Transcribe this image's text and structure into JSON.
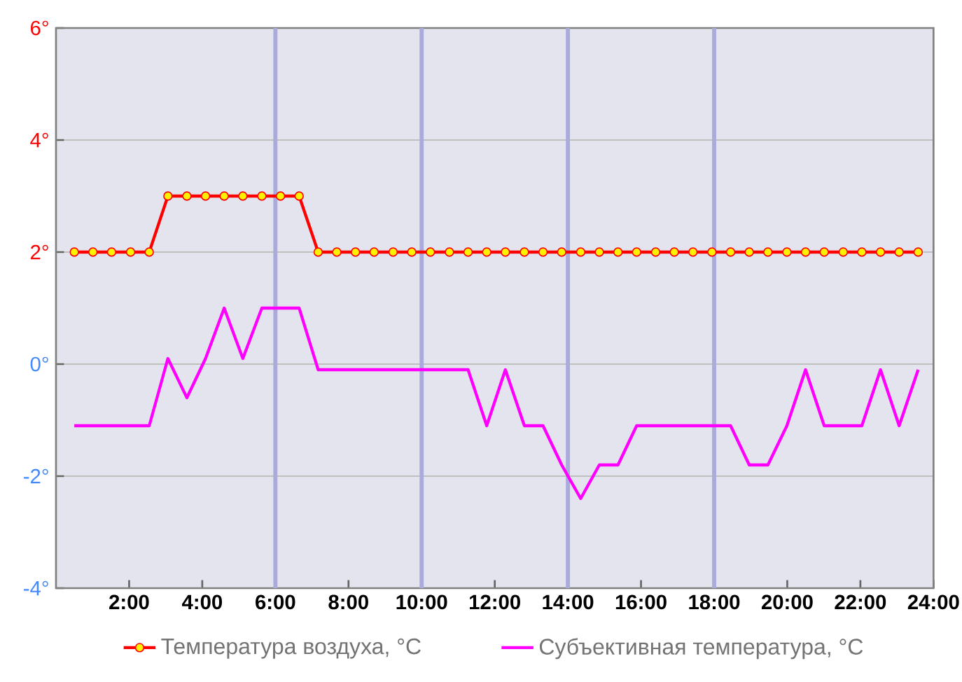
{
  "chart_data": {
    "type": "line",
    "x": [
      0.5,
      1.01,
      1.52,
      2.04,
      2.55,
      3.06,
      3.58,
      4.09,
      4.6,
      5.11,
      5.63,
      6.14,
      6.65,
      7.17,
      7.68,
      8.19,
      8.7,
      9.22,
      9.73,
      10.24,
      10.76,
      11.27,
      11.78,
      12.29,
      12.81,
      13.32,
      13.83,
      14.35,
      14.86,
      15.37,
      15.88,
      16.4,
      16.91,
      17.42,
      17.94,
      18.45,
      18.96,
      19.47,
      19.99,
      20.5,
      21.01,
      21.53,
      22.04,
      22.55,
      23.06,
      23.58
    ],
    "series": [
      {
        "name": "Температура воздуха, °C",
        "color": "#ff0000",
        "marker": "circle",
        "values": [
          2,
          2,
          2,
          2,
          2,
          3,
          3,
          3,
          3,
          3,
          3,
          3,
          3,
          2,
          2,
          2,
          2,
          2,
          2,
          2,
          2,
          2,
          2,
          2,
          2,
          2,
          2,
          2,
          2,
          2,
          2,
          2,
          2,
          2,
          2,
          2,
          2,
          2,
          2,
          2,
          2,
          2,
          2,
          2,
          2,
          2
        ]
      },
      {
        "name": "Субъективная температура, °C",
        "color": "#ff00ff",
        "marker": "none",
        "values": [
          -1.1,
          -1.1,
          -1.1,
          -1.1,
          -1.1,
          0.1,
          -0.6,
          0.1,
          1.0,
          0.1,
          1.0,
          1.0,
          1.0,
          -0.1,
          -0.1,
          -0.1,
          -0.1,
          -0.1,
          -0.1,
          -0.1,
          -0.1,
          -0.1,
          -1.1,
          -0.1,
          -1.1,
          -1.1,
          -1.8,
          -2.4,
          -1.8,
          -1.8,
          -1.1,
          -1.1,
          -1.1,
          -1.1,
          -1.1,
          -1.1,
          -1.8,
          -1.8,
          -1.1,
          -0.1,
          -1.1,
          -1.1,
          -1.1,
          -0.1,
          -1.1,
          -0.1
        ]
      }
    ],
    "xlim": [
      0,
      24
    ],
    "xticks": [
      {
        "value": 2,
        "label": "2:00"
      },
      {
        "value": 4,
        "label": "4:00"
      },
      {
        "value": 6,
        "label": "6:00"
      },
      {
        "value": 8,
        "label": "8:00"
      },
      {
        "value": 10,
        "label": "10:00"
      },
      {
        "value": 12,
        "label": "12:00"
      },
      {
        "value": 14,
        "label": "14:00"
      },
      {
        "value": 16,
        "label": "16:00"
      },
      {
        "value": 18,
        "label": "18:00"
      },
      {
        "value": 20,
        "label": "20:00"
      },
      {
        "value": 22,
        "label": "22:00"
      },
      {
        "value": 24,
        "label": "24:00"
      }
    ],
    "ylim": [
      -4,
      6
    ],
    "yticks": [
      {
        "value": -4,
        "label": "-4°"
      },
      {
        "value": -2,
        "label": "-2°"
      },
      {
        "value": 0,
        "label": "0°"
      },
      {
        "value": 2,
        "label": "2°"
      },
      {
        "value": 4,
        "label": "4°"
      },
      {
        "value": 6,
        "label": "6°"
      }
    ],
    "ref_lines": [
      {
        "axis": "x",
        "value": 6,
        "color": "#aaaadd"
      },
      {
        "axis": "x",
        "value": 10,
        "color": "#aaaadd"
      },
      {
        "axis": "x",
        "value": 14,
        "color": "#aaaadd"
      },
      {
        "axis": "x",
        "value": 18,
        "color": "#aaaadd"
      }
    ],
    "grid": "y",
    "legend": "bottom",
    "line_style": "solid"
  }
}
